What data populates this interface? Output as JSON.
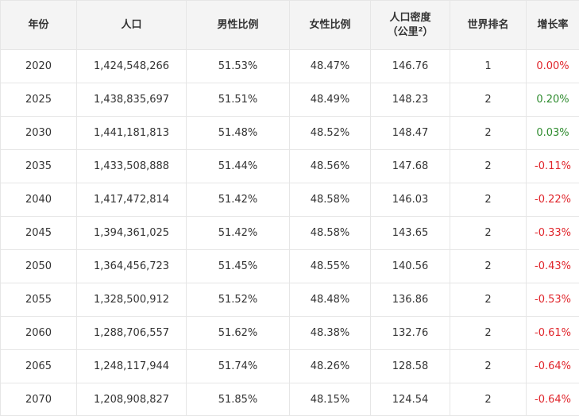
{
  "table": {
    "headers": {
      "year": "年份",
      "population": "人口",
      "male_ratio": "男性比例",
      "female_ratio": "女性比例",
      "density_line1": "人口密度",
      "density_line2": "（公里²）",
      "world_rank": "世界排名",
      "growth_rate": "增长率"
    },
    "rows": [
      {
        "year": "2020",
        "population": "1,424,548,266",
        "male": "51.53%",
        "female": "48.47%",
        "density": "146.76",
        "rank": "1",
        "rate": "0.00%",
        "rate_color": "#e0252b"
      },
      {
        "year": "2025",
        "population": "1,438,835,697",
        "male": "51.51%",
        "female": "48.49%",
        "density": "148.23",
        "rank": "2",
        "rate": "0.20%",
        "rate_color": "#2e8b2e"
      },
      {
        "year": "2030",
        "population": "1,441,181,813",
        "male": "51.48%",
        "female": "48.52%",
        "density": "148.47",
        "rank": "2",
        "rate": "0.03%",
        "rate_color": "#2e8b2e"
      },
      {
        "year": "2035",
        "population": "1,433,508,888",
        "male": "51.44%",
        "female": "48.56%",
        "density": "147.68",
        "rank": "2",
        "rate": "-0.11%",
        "rate_color": "#e0252b"
      },
      {
        "year": "2040",
        "population": "1,417,472,814",
        "male": "51.42%",
        "female": "48.58%",
        "density": "146.03",
        "rank": "2",
        "rate": "-0.22%",
        "rate_color": "#e0252b"
      },
      {
        "year": "2045",
        "population": "1,394,361,025",
        "male": "51.42%",
        "female": "48.58%",
        "density": "143.65",
        "rank": "2",
        "rate": "-0.33%",
        "rate_color": "#e0252b"
      },
      {
        "year": "2050",
        "population": "1,364,456,723",
        "male": "51.45%",
        "female": "48.55%",
        "density": "140.56",
        "rank": "2",
        "rate": "-0.43%",
        "rate_color": "#e0252b"
      },
      {
        "year": "2055",
        "population": "1,328,500,912",
        "male": "51.52%",
        "female": "48.48%",
        "density": "136.86",
        "rank": "2",
        "rate": "-0.53%",
        "rate_color": "#e0252b"
      },
      {
        "year": "2060",
        "population": "1,288,706,557",
        "male": "51.62%",
        "female": "48.38%",
        "density": "132.76",
        "rank": "2",
        "rate": "-0.61%",
        "rate_color": "#e0252b"
      },
      {
        "year": "2065",
        "population": "1,248,117,944",
        "male": "51.74%",
        "female": "48.26%",
        "density": "128.58",
        "rank": "2",
        "rate": "-0.64%",
        "rate_color": "#e0252b"
      },
      {
        "year": "2070",
        "population": "1,208,908,827",
        "male": "51.85%",
        "female": "48.15%",
        "density": "124.54",
        "rank": "2",
        "rate": "-0.64%",
        "rate_color": "#e0252b"
      }
    ]
  }
}
